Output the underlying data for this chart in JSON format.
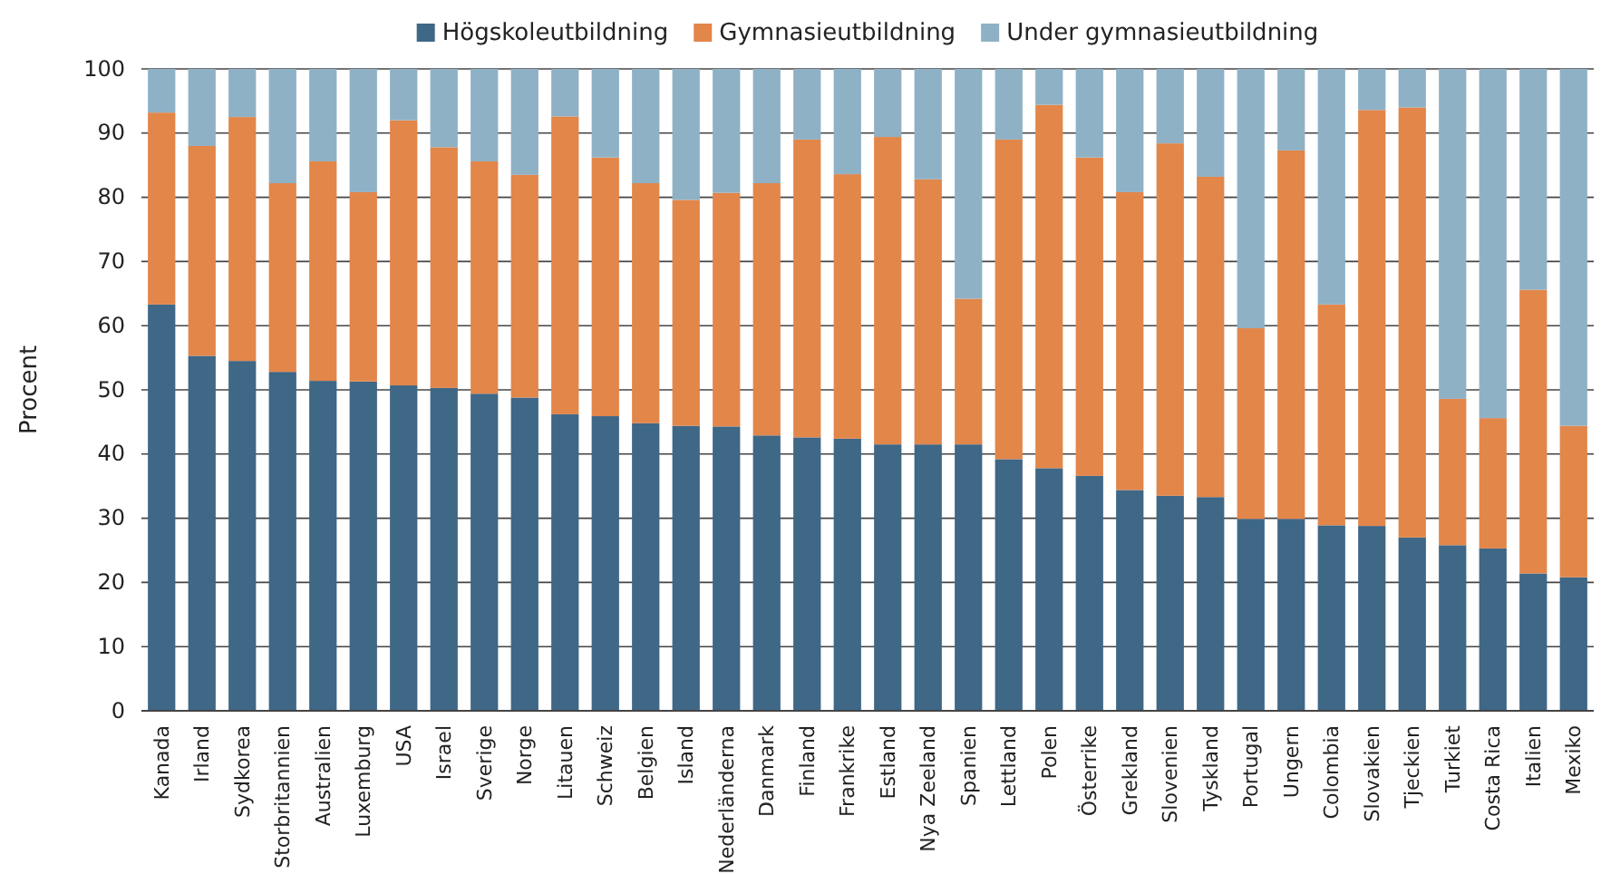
{
  "chart_data": {
    "type": "bar",
    "stacked": true,
    "ylabel": "Procent",
    "ylim": [
      0,
      100
    ],
    "yticks": [
      0,
      10,
      20,
      30,
      40,
      50,
      60,
      70,
      80,
      90,
      100
    ],
    "grid": "y",
    "legend": "top",
    "categories": [
      "Kanada",
      "Irland",
      "Sydkorea",
      "Storbritannien",
      "Australien",
      "Luxemburg",
      "USA",
      "Israel",
      "Sverige",
      "Norge",
      "Litauen",
      "Schweiz",
      "Belgien",
      "Island",
      "Nederländerna",
      "Danmark",
      "Finland",
      "Frankrike",
      "Estland",
      "Nya Zeeland",
      "Spanien",
      "Lettland",
      "Polen",
      "Österrike",
      "Grekland",
      "Slovenien",
      "Tyskland",
      "Portugal",
      "Ungern",
      "Colombia",
      "Slovakien",
      "Tjeckien",
      "Turkiet",
      "Costa Rica",
      "Italien",
      "Mexiko"
    ],
    "series": [
      {
        "name": "Högskoleutbildning",
        "color": "#3f6786",
        "values": [
          63.3,
          55.3,
          54.5,
          52.8,
          51.4,
          51.3,
          50.7,
          50.3,
          49.4,
          48.8,
          46.2,
          45.9,
          44.8,
          44.4,
          44.3,
          42.9,
          42.6,
          42.4,
          41.5,
          41.5,
          41.5,
          39.2,
          37.8,
          36.6,
          34.4,
          33.5,
          33.3,
          29.9,
          29.9,
          28.9,
          28.8,
          27,
          25.8,
          25.3,
          21.4,
          20.8
        ]
      },
      {
        "name": "Gymnasieutbildning",
        "color": "#e2864a",
        "values": [
          29.9,
          32.7,
          38,
          29.4,
          34.2,
          29.5,
          41.3,
          37.5,
          36.2,
          34.7,
          46.4,
          40.3,
          37.4,
          35.2,
          36.4,
          39.3,
          46.4,
          41.2,
          47.9,
          41.3,
          22.7,
          49.8,
          56.6,
          49.6,
          46.4,
          54.9,
          49.9,
          29.7,
          57.4,
          34.4,
          64.8,
          67,
          22.8,
          20.3,
          44.2,
          23.6
        ]
      },
      {
        "name": "Under gymnasieutbildning",
        "color": "#8fb1c5",
        "values": [
          6.8,
          12,
          7.5,
          17.8,
          14.4,
          19.2,
          8,
          12.2,
          14.4,
          16.5,
          7.4,
          13.8,
          17.8,
          20.4,
          19.3,
          17.8,
          11,
          16.4,
          10.6,
          17.2,
          35.8,
          11,
          5.6,
          13.8,
          19.2,
          11.6,
          16.8,
          40.4,
          12.7,
          36.7,
          6.4,
          6,
          51.4,
          54.4,
          34.4,
          55.6
        ]
      }
    ]
  }
}
